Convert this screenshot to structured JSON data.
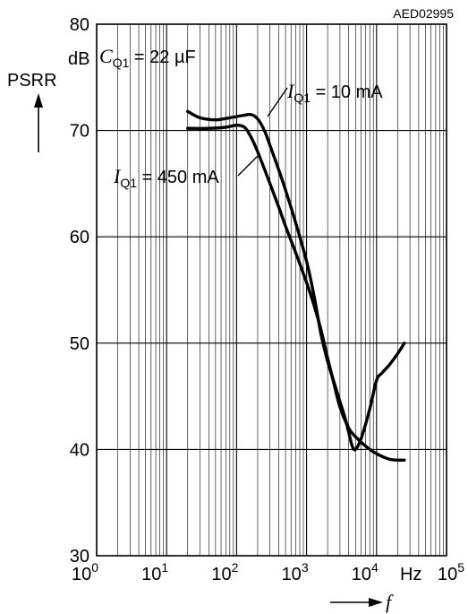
{
  "chart_data": {
    "type": "line",
    "figure_code": "AED02995",
    "ylabel": "PSRR",
    "yunit": "dB",
    "xunit": "Hz",
    "xlabel": "f",
    "xscale": "log",
    "xlim": [
      1,
      100000
    ],
    "ylim": [
      30,
      80
    ],
    "y_ticks": [
      30,
      40,
      50,
      60,
      70,
      80
    ],
    "x_ticks": [
      {
        "base": "10",
        "exp": "0",
        "value": 1
      },
      {
        "base": "10",
        "exp": "1",
        "value": 10
      },
      {
        "base": "10",
        "exp": "2",
        "value": 100
      },
      {
        "base": "10",
        "exp": "3",
        "value": 1000
      },
      {
        "base": "10",
        "exp": "4",
        "value": 10000
      },
      {
        "base": "10",
        "exp": "5",
        "value": 100000
      }
    ],
    "grid": true,
    "annotations": {
      "condition": {
        "symbol": "C",
        "sub": "Q1",
        "text": " = 22 µF"
      }
    },
    "series": [
      {
        "label_symbol": "I",
        "label_sub": "Q1",
        "label_text": " = 10 mA",
        "points": [
          [
            20,
            71.8
          ],
          [
            30,
            71.2
          ],
          [
            50,
            71.0
          ],
          [
            80,
            71.2
          ],
          [
            120,
            71.4
          ],
          [
            160,
            71.5
          ],
          [
            200,
            71.1
          ],
          [
            250,
            70.0
          ],
          [
            300,
            68.6
          ],
          [
            400,
            66.3
          ],
          [
            500,
            64.4
          ],
          [
            700,
            61.3
          ],
          [
            1000,
            57.7
          ],
          [
            1300,
            54.2
          ],
          [
            1600,
            50.9
          ],
          [
            2000,
            48.3
          ],
          [
            2500,
            46.2
          ],
          [
            3000,
            44.5
          ],
          [
            3500,
            43.1
          ],
          [
            4000,
            41.6
          ],
          [
            4500,
            40.3
          ],
          [
            5000,
            40.0
          ],
          [
            6000,
            41.0
          ],
          [
            8000,
            43.8
          ],
          [
            10000,
            46.5
          ],
          [
            12000,
            47.2
          ],
          [
            15000,
            47.9
          ],
          [
            20000,
            49.0
          ],
          [
            25000,
            50.0
          ]
        ]
      },
      {
        "label_symbol": "I",
        "label_sub": "Q1",
        "label_text": " = 450 mA",
        "points": [
          [
            20,
            70.2
          ],
          [
            40,
            70.2
          ],
          [
            70,
            70.3
          ],
          [
            100,
            70.5
          ],
          [
            130,
            70.3
          ],
          [
            160,
            69.4
          ],
          [
            200,
            68.0
          ],
          [
            300,
            65.0
          ],
          [
            400,
            62.8
          ],
          [
            500,
            61.0
          ],
          [
            700,
            58.5
          ],
          [
            1000,
            55.7
          ],
          [
            1300,
            53.4
          ],
          [
            1600,
            51.3
          ],
          [
            2000,
            48.6
          ],
          [
            2500,
            46.0
          ],
          [
            3000,
            44.0
          ],
          [
            4000,
            42.0
          ],
          [
            5000,
            41.2
          ],
          [
            7000,
            40.3
          ],
          [
            10000,
            39.6
          ],
          [
            15000,
            39.1
          ],
          [
            20000,
            39.0
          ],
          [
            25000,
            39.0
          ]
        ]
      }
    ]
  }
}
